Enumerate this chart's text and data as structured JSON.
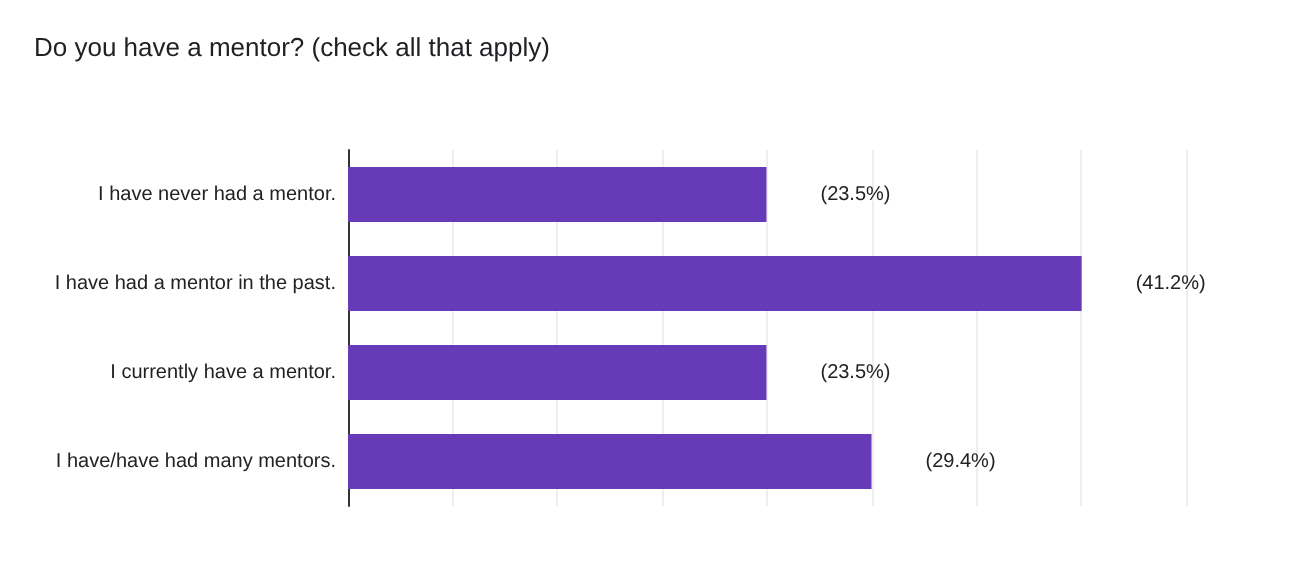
{
  "chart_data": {
    "type": "bar",
    "orientation": "horizontal",
    "title": "Do you have a mentor? (check all that apply)",
    "categories": [
      "I have never had a mentor.",
      "I have had a mentor in the past.",
      "I currently have a mentor.",
      "I have/have had many mentors."
    ],
    "values": [
      23.5,
      41.2,
      23.5,
      29.4
    ],
    "color": "#673ab7",
    "value_labels": [
      "(23.5%)",
      "(41.2%)",
      "(23.5%)",
      "(29.4%)"
    ],
    "xlim": [
      0,
      47.06
    ],
    "xticks": [
      {
        "value": 0,
        "label": null
      },
      {
        "value": 5.88,
        "label": null
      },
      {
        "value": 11.76,
        "label": null
      },
      {
        "value": 17.65,
        "label": null
      },
      {
        "value": 23.53,
        "label": null
      },
      {
        "value": 29.41,
        "label": null
      },
      {
        "value": 35.29,
        "label": null
      },
      {
        "value": 41.18,
        "label": null
      },
      {
        "value": 47.06,
        "label": null
      }
    ],
    "grid": "x",
    "tick_labels": "y"
  }
}
